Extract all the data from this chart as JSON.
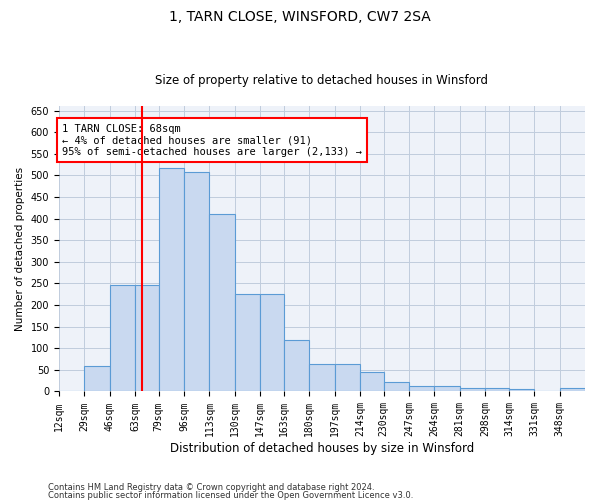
{
  "title": "1, TARN CLOSE, WINSFORD, CW7 2SA",
  "subtitle": "Size of property relative to detached houses in Winsford",
  "xlabel": "Distribution of detached houses by size in Winsford",
  "ylabel": "Number of detached properties",
  "footnote1": "Contains HM Land Registry data © Crown copyright and database right 2024.",
  "footnote2": "Contains public sector information licensed under the Open Government Licence v3.0.",
  "annotation_title": "1 TARN CLOSE: 68sqm",
  "annotation_line1": "← 4% of detached houses are smaller (91)",
  "annotation_line2": "95% of semi-detached houses are larger (2,133) →",
  "bar_color": "#c9d9f0",
  "bar_edge_color": "#5b9bd5",
  "red_line_x": 68,
  "categories": [
    "12sqm",
    "29sqm",
    "46sqm",
    "63sqm",
    "79sqm",
    "96sqm",
    "113sqm",
    "130sqm",
    "147sqm",
    "163sqm",
    "180sqm",
    "197sqm",
    "214sqm",
    "230sqm",
    "247sqm",
    "264sqm",
    "281sqm",
    "298sqm",
    "314sqm",
    "331sqm",
    "348sqm"
  ],
  "bin_edges": [
    12,
    29,
    46,
    63,
    79,
    96,
    113,
    130,
    147,
    163,
    180,
    197,
    214,
    230,
    247,
    264,
    281,
    298,
    314,
    331,
    348,
    365
  ],
  "values": [
    2,
    60,
    246,
    246,
    517,
    508,
    411,
    226,
    226,
    120,
    63,
    63,
    46,
    21,
    12,
    12,
    8,
    8,
    6,
    1,
    8
  ],
  "ylim": [
    0,
    660
  ],
  "yticks": [
    0,
    50,
    100,
    150,
    200,
    250,
    300,
    350,
    400,
    450,
    500,
    550,
    600,
    650
  ],
  "grid_color": "#c0ccdd",
  "background_color": "#eef2f9",
  "title_fontsize": 10,
  "subtitle_fontsize": 8.5,
  "xlabel_fontsize": 8.5,
  "ylabel_fontsize": 7.5,
  "tick_fontsize": 7,
  "footnote_fontsize": 6,
  "annot_fontsize": 7.5
}
